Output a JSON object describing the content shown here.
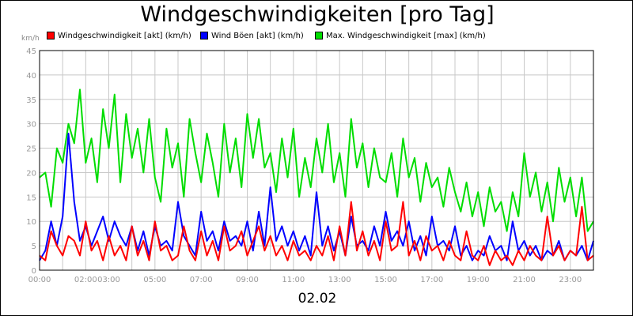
{
  "title": "Windgeschwindigkeiten [pro Tag]",
  "date_label": "02.02",
  "unit_label": "km/h",
  "colors": {
    "red": "#ff0000",
    "blue": "#0000ff",
    "green": "#00dd00",
    "grid": "#c8c8c8"
  },
  "chart_data": {
    "type": "line",
    "title": "Windgeschwindigkeiten [pro Tag]",
    "xlabel": "02.02",
    "ylabel": "km/h",
    "ylim": [
      0,
      45
    ],
    "xlim": [
      0,
      24
    ],
    "x_tick_labels": [
      "00:00",
      "02:00",
      "03:00",
      "05:00",
      "07:00",
      "09:00",
      "11:00",
      "13:00",
      "15:00",
      "17:00",
      "19:00",
      "21:00",
      "23:00"
    ],
    "x_tick_hours": [
      0,
      2,
      3,
      5,
      7,
      9,
      11,
      13,
      15,
      17,
      19,
      21,
      23
    ],
    "y_ticks": [
      0,
      5,
      10,
      15,
      20,
      25,
      30,
      35,
      40,
      45
    ],
    "grid": true,
    "legend_position": "top",
    "series": [
      {
        "name": "Windgeschwindigkeit [akt] (km/h)",
        "color": "#ff0000",
        "x": [
          0,
          0.25,
          0.5,
          0.75,
          1,
          1.25,
          1.5,
          1.75,
          2,
          2.25,
          2.5,
          2.75,
          3,
          3.25,
          3.5,
          3.75,
          4,
          4.25,
          4.5,
          4.75,
          5,
          5.25,
          5.5,
          5.75,
          6,
          6.25,
          6.5,
          6.75,
          7,
          7.25,
          7.5,
          7.75,
          8,
          8.25,
          8.5,
          8.75,
          9,
          9.25,
          9.5,
          9.75,
          10,
          10.25,
          10.5,
          10.75,
          11,
          11.25,
          11.5,
          11.75,
          12,
          12.25,
          12.5,
          12.75,
          13,
          13.25,
          13.5,
          13.75,
          14,
          14.25,
          14.5,
          14.75,
          15,
          15.25,
          15.5,
          15.75,
          16,
          16.25,
          16.5,
          16.75,
          17,
          17.25,
          17.5,
          17.75,
          18,
          18.25,
          18.5,
          18.75,
          19,
          19.25,
          19.5,
          19.75,
          20,
          20.25,
          20.5,
          20.75,
          21,
          21.25,
          21.5,
          21.75,
          22,
          22.25,
          22.5,
          22.75,
          23,
          23.25,
          23.5,
          23.75,
          24
        ],
        "values": [
          3,
          2,
          8,
          5,
          3,
          7,
          6,
          3,
          10,
          4,
          6,
          2,
          7,
          3,
          5,
          2,
          9,
          3,
          6,
          2,
          10,
          4,
          5,
          2,
          3,
          9,
          4,
          2,
          8,
          3,
          6,
          2,
          9,
          4,
          5,
          8,
          3,
          6,
          9,
          4,
          7,
          3,
          5,
          2,
          6,
          3,
          4,
          2,
          5,
          3,
          7,
          2,
          9,
          3,
          14,
          4,
          8,
          3,
          6,
          2,
          10,
          4,
          5,
          14,
          3,
          6,
          2,
          7,
          4,
          5,
          2,
          6,
          3,
          2,
          8,
          3,
          2,
          5,
          1,
          4,
          2,
          3,
          1,
          4,
          2,
          5,
          3,
          2,
          11,
          3,
          5,
          2,
          4,
          3,
          13,
          2,
          3
        ]
      },
      {
        "name": "Wind Böen [akt] (km/h)",
        "color": "#0000ff",
        "x": [
          0,
          0.25,
          0.5,
          0.75,
          1,
          1.25,
          1.5,
          1.75,
          2,
          2.25,
          2.5,
          2.75,
          3,
          3.25,
          3.5,
          3.75,
          4,
          4.25,
          4.5,
          4.75,
          5,
          5.25,
          5.5,
          5.75,
          6,
          6.25,
          6.5,
          6.75,
          7,
          7.25,
          7.5,
          7.75,
          8,
          8.25,
          8.5,
          8.75,
          9,
          9.25,
          9.5,
          9.75,
          10,
          10.25,
          10.5,
          10.75,
          11,
          11.25,
          11.5,
          11.75,
          12,
          12.25,
          12.5,
          12.75,
          13,
          13.25,
          13.5,
          13.75,
          14,
          14.25,
          14.5,
          14.75,
          15,
          15.25,
          15.5,
          15.75,
          16,
          16.25,
          16.5,
          16.75,
          17,
          17.25,
          17.5,
          17.75,
          18,
          18.25,
          18.5,
          18.75,
          19,
          19.25,
          19.5,
          19.75,
          20,
          20.25,
          20.5,
          20.75,
          21,
          21.25,
          21.5,
          21.75,
          22,
          22.25,
          22.5,
          22.75,
          23,
          23.25,
          23.5,
          23.75,
          24
        ],
        "values": [
          2,
          4,
          10,
          5,
          11,
          28,
          14,
          6,
          9,
          5,
          8,
          11,
          6,
          10,
          7,
          5,
          9,
          4,
          8,
          3,
          9,
          5,
          6,
          4,
          14,
          7,
          5,
          3,
          12,
          6,
          8,
          4,
          10,
          6,
          7,
          5,
          10,
          4,
          12,
          5,
          17,
          6,
          9,
          5,
          8,
          4,
          7,
          3,
          16,
          5,
          9,
          4,
          8,
          3,
          11,
          5,
          6,
          4,
          9,
          5,
          12,
          6,
          8,
          5,
          10,
          4,
          7,
          3,
          11,
          5,
          6,
          4,
          9,
          3,
          5,
          2,
          4,
          3,
          7,
          4,
          5,
          2,
          10,
          4,
          6,
          3,
          5,
          2,
          4,
          3,
          6,
          2,
          4,
          3,
          5,
          2,
          6
        ]
      },
      {
        "name": "Max. Windgeschwindigkeit [max] (km/h)",
        "color": "#00dd00",
        "x": [
          0,
          0.25,
          0.5,
          0.75,
          1,
          1.25,
          1.5,
          1.75,
          2,
          2.25,
          2.5,
          2.75,
          3,
          3.25,
          3.5,
          3.75,
          4,
          4.25,
          4.5,
          4.75,
          5,
          5.25,
          5.5,
          5.75,
          6,
          6.25,
          6.5,
          6.75,
          7,
          7.25,
          7.5,
          7.75,
          8,
          8.25,
          8.5,
          8.75,
          9,
          9.25,
          9.5,
          9.75,
          10,
          10.25,
          10.5,
          10.75,
          11,
          11.25,
          11.5,
          11.75,
          12,
          12.25,
          12.5,
          12.75,
          13,
          13.25,
          13.5,
          13.75,
          14,
          14.25,
          14.5,
          14.75,
          15,
          15.25,
          15.5,
          15.75,
          16,
          16.25,
          16.5,
          16.75,
          17,
          17.25,
          17.5,
          17.75,
          18,
          18.25,
          18.5,
          18.75,
          19,
          19.25,
          19.5,
          19.75,
          20,
          20.25,
          20.5,
          20.75,
          21,
          21.25,
          21.5,
          21.75,
          22,
          22.25,
          22.5,
          22.75,
          23,
          23.25,
          23.5,
          23.75,
          24
        ],
        "values": [
          19,
          20,
          13,
          25,
          22,
          30,
          26,
          37,
          22,
          27,
          18,
          33,
          25,
          36,
          18,
          32,
          23,
          29,
          20,
          31,
          19,
          14,
          29,
          21,
          26,
          15,
          31,
          24,
          18,
          28,
          22,
          15,
          30,
          20,
          27,
          17,
          32,
          23,
          31,
          21,
          24,
          16,
          27,
          19,
          29,
          15,
          23,
          17,
          27,
          20,
          30,
          18,
          24,
          15,
          31,
          21,
          26,
          17,
          25,
          19,
          18,
          24,
          15,
          27,
          19,
          23,
          14,
          22,
          17,
          19,
          13,
          21,
          16,
          12,
          18,
          11,
          16,
          9,
          17,
          12,
          14,
          8,
          16,
          11,
          24,
          15,
          20,
          12,
          18,
          10,
          21,
          14,
          19,
          11,
          19,
          8,
          10
        ]
      }
    ]
  }
}
